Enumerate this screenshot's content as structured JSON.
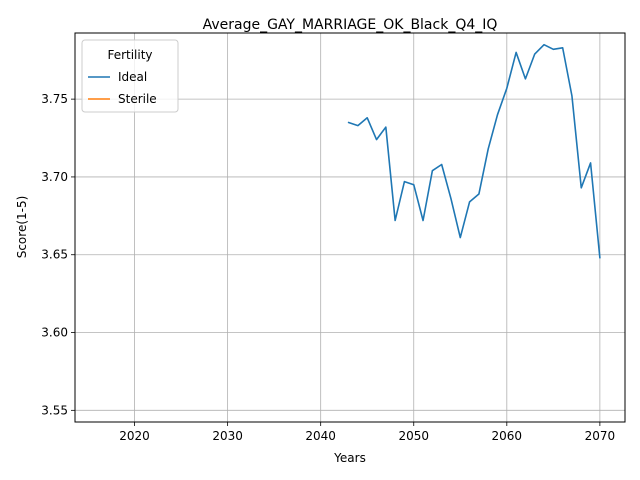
{
  "chart_data": {
    "type": "line",
    "title": "Average_GAY_MARRIAGE_OK_Black_Q4_IQ",
    "xlabel": "Years",
    "ylabel": "Score(1-5)",
    "xlim": [
      2013.6,
      2072.7
    ],
    "ylim": [
      3.5425,
      3.7925
    ],
    "x_ticks": [
      2020,
      2030,
      2040,
      2050,
      2060,
      2070
    ],
    "y_ticks": [
      3.55,
      3.6,
      3.65,
      3.7,
      3.75
    ],
    "y_tick_labels": [
      "3.55",
      "3.60",
      "3.65",
      "3.70",
      "3.75"
    ],
    "grid": true,
    "legend": {
      "title": "Fertility",
      "placement": "top-left"
    },
    "series": [
      {
        "name": "Ideal",
        "color": "#1f77b4",
        "x": [
          2043,
          2044,
          2045,
          2046,
          2047,
          2048,
          2049,
          2050,
          2051,
          2052,
          2053,
          2054,
          2055,
          2056,
          2057,
          2058,
          2059,
          2060,
          2061,
          2062,
          2063,
          2064,
          2065,
          2066,
          2067,
          2068,
          2069,
          2070
        ],
        "values": [
          3.735,
          3.733,
          3.738,
          3.724,
          3.732,
          3.672,
          3.697,
          3.695,
          3.672,
          3.704,
          3.708,
          3.686,
          3.661,
          3.684,
          3.689,
          3.718,
          3.74,
          3.757,
          3.78,
          3.763,
          3.779,
          3.785,
          3.782,
          3.783,
          3.752,
          3.693,
          3.709,
          3.648
        ]
      },
      {
        "name": "Sterile",
        "color": "#ff7f0e",
        "x": [],
        "values": []
      }
    ]
  }
}
